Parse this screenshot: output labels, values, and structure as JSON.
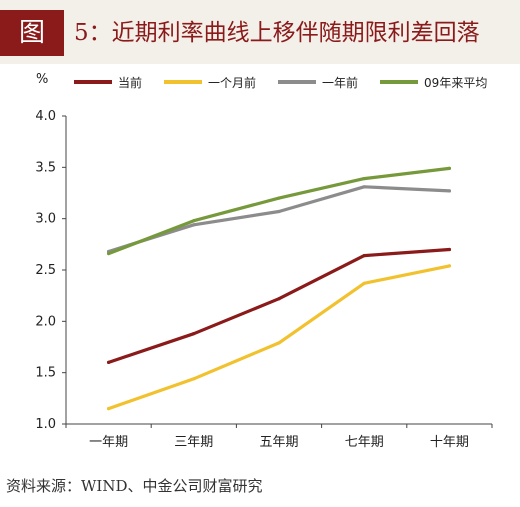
{
  "header": {
    "figure_tag": "图",
    "title": "5：近期利率曲线上移伴随期限利差回落"
  },
  "chart_data": {
    "type": "line",
    "unit_label": "%",
    "categories": [
      "一年期",
      "三年期",
      "五年期",
      "七年期",
      "十年期"
    ],
    "ylim": [
      1.0,
      4.0
    ],
    "yticks": [
      "4.0",
      "3.5",
      "3.0",
      "2.5",
      "2.0",
      "1.5",
      "1.0"
    ],
    "grid": false,
    "legend_position": "top",
    "series": [
      {
        "name": "当前",
        "color": "#8b1a1a",
        "values": [
          1.6,
          1.88,
          2.22,
          2.64,
          2.7
        ]
      },
      {
        "name": "一个月前",
        "color": "#f2c12e",
        "values": [
          1.15,
          1.44,
          1.79,
          2.37,
          2.54
        ]
      },
      {
        "name": "一年前",
        "color": "#8c8c8c",
        "values": [
          2.68,
          2.94,
          3.07,
          3.31,
          3.27
        ]
      },
      {
        "name": "09年来平均",
        "color": "#76993b",
        "values": [
          2.66,
          2.98,
          3.2,
          3.39,
          3.49
        ]
      }
    ]
  },
  "footer": {
    "source": "资料来源：WIND、中金公司财富研究"
  }
}
